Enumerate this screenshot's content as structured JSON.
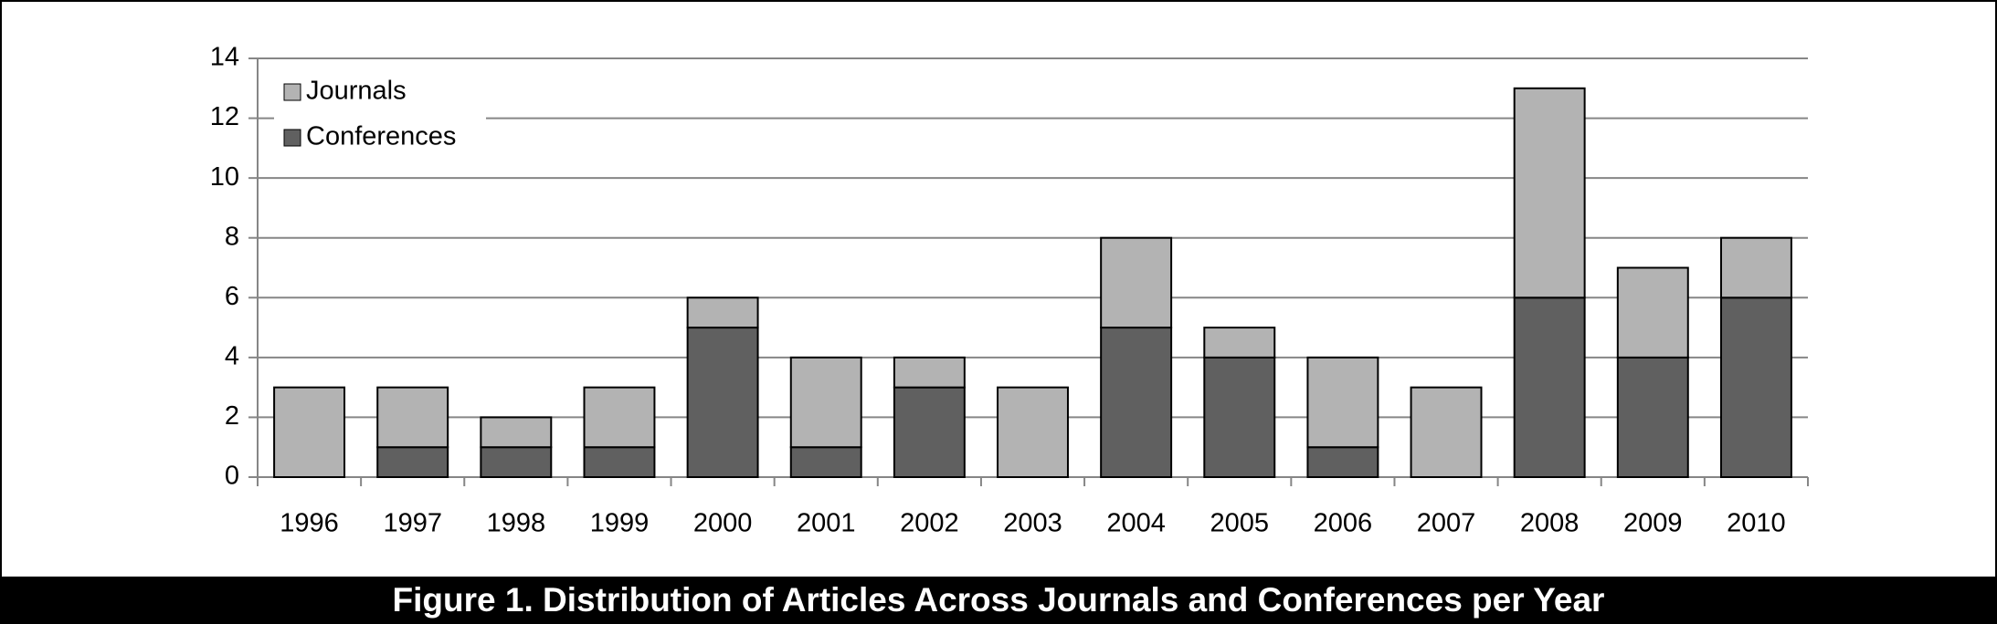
{
  "chart_data": {
    "type": "stacked-bar",
    "title": "Figure 1. Distribution of Articles Across Journals and Conferences per Year",
    "categories": [
      "1996",
      "1997",
      "1998",
      "1999",
      "2000",
      "2001",
      "2002",
      "2003",
      "2004",
      "2005",
      "2006",
      "2007",
      "2008",
      "2009",
      "2010"
    ],
    "series": [
      {
        "name": "Conferences",
        "color": "#606060",
        "values": [
          0,
          1,
          1,
          1,
          5,
          1,
          3,
          0,
          5,
          4,
          1,
          0,
          6,
          4,
          6
        ]
      },
      {
        "name": "Journals",
        "color": "#b3b3b3",
        "values": [
          3,
          2,
          1,
          2,
          1,
          3,
          1,
          3,
          3,
          1,
          3,
          3,
          7,
          3,
          2
        ]
      }
    ],
    "ylim": [
      0,
      14
    ],
    "yticks": [
      0,
      2,
      4,
      6,
      8,
      10,
      12,
      14
    ],
    "grid": true,
    "legend": "top-left"
  }
}
